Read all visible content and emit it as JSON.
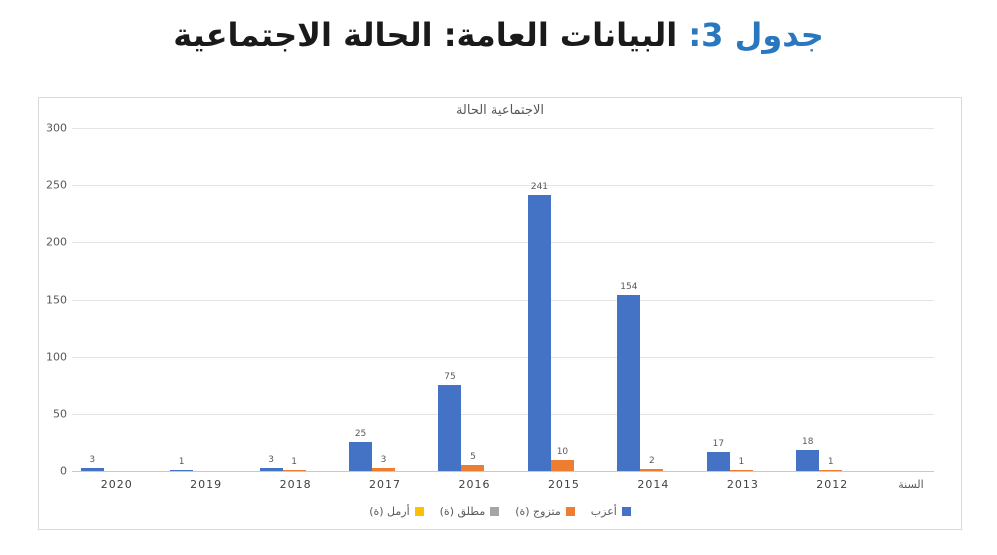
{
  "heading": {
    "prefix": "جدول 3:",
    "text": " البيانات العامة: الحالة الاجتماعية",
    "prefix_color": "#2977BE"
  },
  "chart_data": {
    "type": "bar",
    "title": "الاجتماعية الحالة",
    "categories": [
      "2020",
      "2019",
      "2018",
      "2017",
      "2016",
      "2015",
      "2014",
      "2013",
      "2012"
    ],
    "series": [
      {
        "name": "أعزب",
        "color": "#4472C4",
        "values": [
          3,
          1,
          3,
          25,
          75,
          241,
          154,
          17,
          18
        ]
      },
      {
        "name": "متزوج (ة)",
        "color": "#ED7D31",
        "values": [
          0,
          0,
          1,
          3,
          5,
          10,
          2,
          1,
          1
        ]
      },
      {
        "name": "مطلق (ة)",
        "color": "#A5A5A5",
        "values": [
          0,
          0,
          0,
          0,
          0,
          0,
          0,
          0,
          0
        ]
      },
      {
        "name": "أرمل (ة)",
        "color": "#FFC000",
        "values": [
          0,
          0,
          0,
          0,
          0,
          0,
          0,
          0,
          0
        ]
      }
    ],
    "xlabel": "السنة",
    "ylabel": "",
    "ylim": [
      0,
      300
    ],
    "yticks": [
      0,
      50,
      100,
      150,
      200,
      250,
      300
    ],
    "grid": true,
    "legend_position": "bottom",
    "data_labels": true
  }
}
